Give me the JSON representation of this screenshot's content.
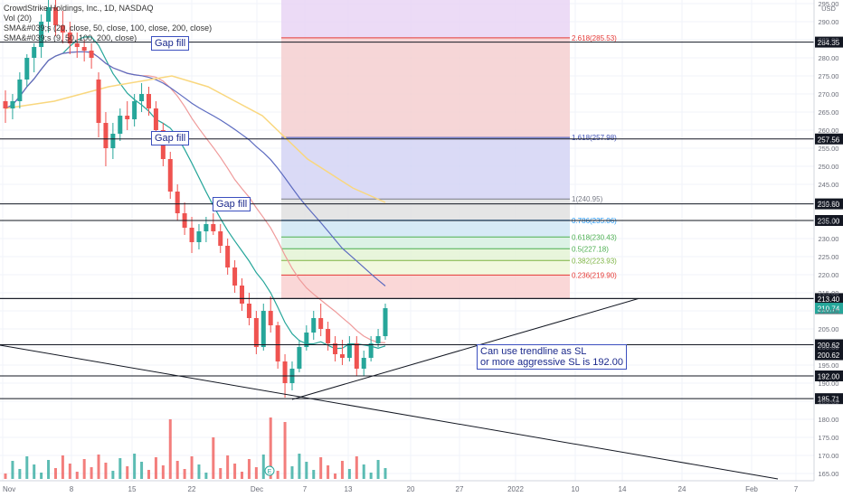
{
  "chart_data": {
    "type": "candlestick",
    "title": "CrowdStrike Holdings, Inc., 1D, NASDAQ",
    "indicators": [
      "Vol (20)",
      "SMA&#039;s (20, close, 50, close, 100, close, 200, close)",
      "SMA&#039;s (9, 50, 100, 200, close)"
    ],
    "currency": "USD",
    "ylim": [
      163,
      296
    ],
    "y_ticks": [
      165,
      170,
      175,
      180,
      185,
      190,
      195,
      200,
      205,
      210,
      215,
      220,
      225,
      230,
      235,
      240,
      245,
      250,
      255,
      260,
      265,
      270,
      275,
      280,
      285,
      290,
      295
    ],
    "x_tick_labels": [
      "Nov",
      "8",
      "15",
      "22",
      "Dec",
      "7",
      "13",
      "20",
      "27",
      "2022",
      "10",
      "14",
      "24",
      "Feb",
      "7"
    ],
    "horizontal_levels": [
      {
        "value": 284.35,
        "label": "284.35"
      },
      {
        "value": 257.56,
        "label": "257.56"
      },
      {
        "value": 239.6,
        "label": "239.60"
      },
      {
        "value": 235.0,
        "label": "235.00"
      },
      {
        "value": 213.4,
        "label": "213.40"
      },
      {
        "value": 213.4,
        "label": "213.40"
      },
      {
        "value": 200.62,
        "label": "200.62"
      },
      {
        "value": 200.62,
        "label": "200.62"
      },
      {
        "value": 192.0,
        "label": "192.00"
      },
      {
        "value": 185.71,
        "label": "185.71"
      }
    ],
    "last_price": {
      "value": 210.74,
      "label": "210.74",
      "color": "#26a69a"
    },
    "fib_levels": [
      {
        "ratio": "2.618",
        "value": 285.53,
        "label": "2.618(285.53)",
        "color": "#e53935"
      },
      {
        "ratio": "1.618",
        "value": 257.98,
        "label": "1.618(257.98)",
        "color": "#3f51b5"
      },
      {
        "ratio": "1",
        "value": 240.95,
        "label": "1(240.95)",
        "color": "#787b86"
      },
      {
        "ratio": "0.786",
        "value": 235.06,
        "label": "0.786(235.06)",
        "color": "#2196f3"
      },
      {
        "ratio": "0.618",
        "value": 230.43,
        "label": "0.618(230.43)",
        "color": "#4caf50"
      },
      {
        "ratio": "0.5",
        "value": 227.18,
        "label": "0.5(227.18)",
        "color": "#4caf50"
      },
      {
        "ratio": "0.382",
        "value": 223.93,
        "label": "0.382(223.93)",
        "color": "#7cb342"
      },
      {
        "ratio": "0.236",
        "value": 219.9,
        "label": "0.236(219.90)",
        "color": "#e53935"
      },
      {
        "ratio": "0",
        "value": 213.4,
        "label": "",
        "color": "#787b86"
      }
    ],
    "fib_top_value": 296,
    "annotations": [
      {
        "text": "Gap fill",
        "lines": [
          "Gap fill"
        ]
      },
      {
        "text": "Gap fill",
        "lines": [
          "Gap fill"
        ]
      },
      {
        "text": "Gap fill",
        "lines": [
          "Gap fill"
        ]
      },
      {
        "text": "Can use trendline as SL or more aggressive SL is 192.00",
        "lines": [
          "Can use trendline as SL",
          "or more aggressive SL is 192.00"
        ]
      }
    ],
    "trendlines": [
      {
        "name": "support",
        "from": {
          "date": "Dec 3",
          "value": 185.5
        },
        "to": {
          "date": "Jan 15",
          "value": 213.4
        }
      },
      {
        "name": "descending",
        "from": {
          "date": "Nov 1",
          "value": 200.5
        },
        "to": {
          "date": "Feb 2",
          "value": 163.5
        }
      }
    ],
    "earnings_marker": "E",
    "series": [
      {
        "name": "price",
        "candles": [
          [
            268,
            271,
            262,
            266
          ],
          [
            266,
            270,
            263,
            268
          ],
          [
            268,
            276,
            266,
            274
          ],
          [
            274,
            281,
            272,
            280
          ],
          [
            280,
            284,
            276,
            283
          ],
          [
            283,
            292,
            280,
            290
          ],
          [
            290,
            296,
            287,
            294
          ],
          [
            294,
            296,
            286,
            289
          ],
          [
            289,
            293,
            284,
            287
          ],
          [
            287,
            290,
            281,
            284
          ],
          [
            284,
            287,
            280,
            283
          ],
          [
            283,
            285,
            279,
            282
          ],
          [
            282,
            284,
            277,
            280
          ],
          [
            274,
            276,
            258,
            262
          ],
          [
            262,
            265,
            250,
            255
          ],
          [
            255,
            262,
            252,
            259
          ],
          [
            259,
            266,
            257,
            264
          ],
          [
            264,
            268,
            260,
            263
          ],
          [
            263,
            270,
            261,
            268
          ],
          [
            268,
            273,
            265,
            270
          ],
          [
            270,
            272,
            264,
            266
          ],
          [
            266,
            268,
            258,
            260
          ],
          [
            260,
            262,
            250,
            252
          ],
          [
            252,
            254,
            241,
            243
          ],
          [
            243,
            245,
            235,
            237
          ],
          [
            237,
            240,
            231,
            233
          ],
          [
            233,
            236,
            226,
            229
          ],
          [
            229,
            234,
            227,
            232
          ],
          [
            232,
            236,
            229,
            234
          ],
          [
            234,
            237,
            231,
            232
          ],
          [
            232,
            234,
            226,
            228
          ],
          [
            228,
            230,
            220,
            222
          ],
          [
            222,
            224,
            215,
            217
          ],
          [
            217,
            219,
            210,
            212
          ],
          [
            212,
            215,
            206,
            208
          ],
          [
            208,
            210,
            198,
            200
          ],
          [
            200,
            212,
            199,
            210
          ],
          [
            210,
            214,
            204,
            206
          ],
          [
            206,
            207,
            194,
            196
          ],
          [
            196,
            198,
            186,
            190
          ],
          [
            190,
            196,
            188,
            194
          ],
          [
            194,
            202,
            193,
            200
          ],
          [
            200,
            206,
            199,
            204
          ],
          [
            204,
            210,
            202,
            208
          ],
          [
            208,
            212,
            203,
            205
          ],
          [
            205,
            207,
            199,
            201
          ],
          [
            201,
            203,
            196,
            198
          ],
          [
            198,
            202,
            195,
            197
          ],
          [
            197,
            203,
            196,
            201
          ],
          [
            201,
            203,
            192,
            194
          ],
          [
            194,
            199,
            192,
            197
          ],
          [
            197,
            203,
            196,
            201
          ],
          [
            201,
            205,
            200,
            203
          ],
          [
            203,
            212,
            202,
            210.74
          ]
        ]
      }
    ],
    "volume_scale": [
      0,
      100
    ]
  }
}
